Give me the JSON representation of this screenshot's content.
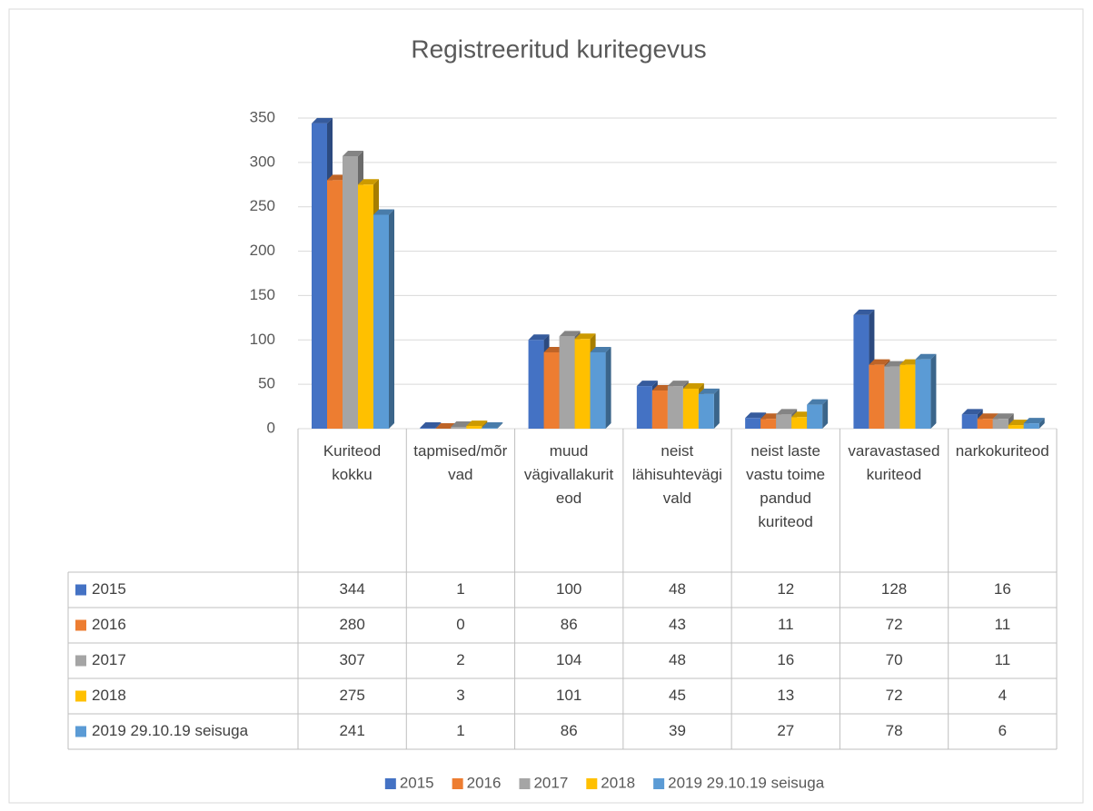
{
  "chart_data": {
    "type": "bar",
    "title": "Registreeritud kuritegevus",
    "categories": [
      "Kuriteod kokku",
      "tapmised/mõrvad",
      "muud vägivallakuriteod",
      "neist lähisuhtevägivald",
      "neist laste vastu toime pandud kuriteod",
      "varavastased kuriteod",
      "narkokuriteod"
    ],
    "series": [
      {
        "name": "2015",
        "color": "#4472c4",
        "values": [
          344,
          1,
          100,
          48,
          12,
          128,
          16
        ]
      },
      {
        "name": "2016",
        "color": "#ed7d31",
        "values": [
          280,
          0,
          86,
          43,
          11,
          72,
          11
        ]
      },
      {
        "name": "2017",
        "color": "#a5a5a5",
        "values": [
          307,
          2,
          104,
          48,
          16,
          70,
          11
        ]
      },
      {
        "name": "2018",
        "color": "#ffc000",
        "values": [
          275,
          3,
          101,
          45,
          13,
          72,
          4
        ]
      },
      {
        "name": "2019 29.10.19 seisuga",
        "color": "#5b9bd5",
        "values": [
          241,
          1,
          86,
          39,
          27,
          78,
          6
        ]
      }
    ],
    "ylim": [
      0,
      350
    ],
    "yticks": [
      0,
      50,
      100,
      150,
      200,
      250,
      300,
      350
    ],
    "grid": true,
    "legend": "bottom",
    "data_table": true
  }
}
